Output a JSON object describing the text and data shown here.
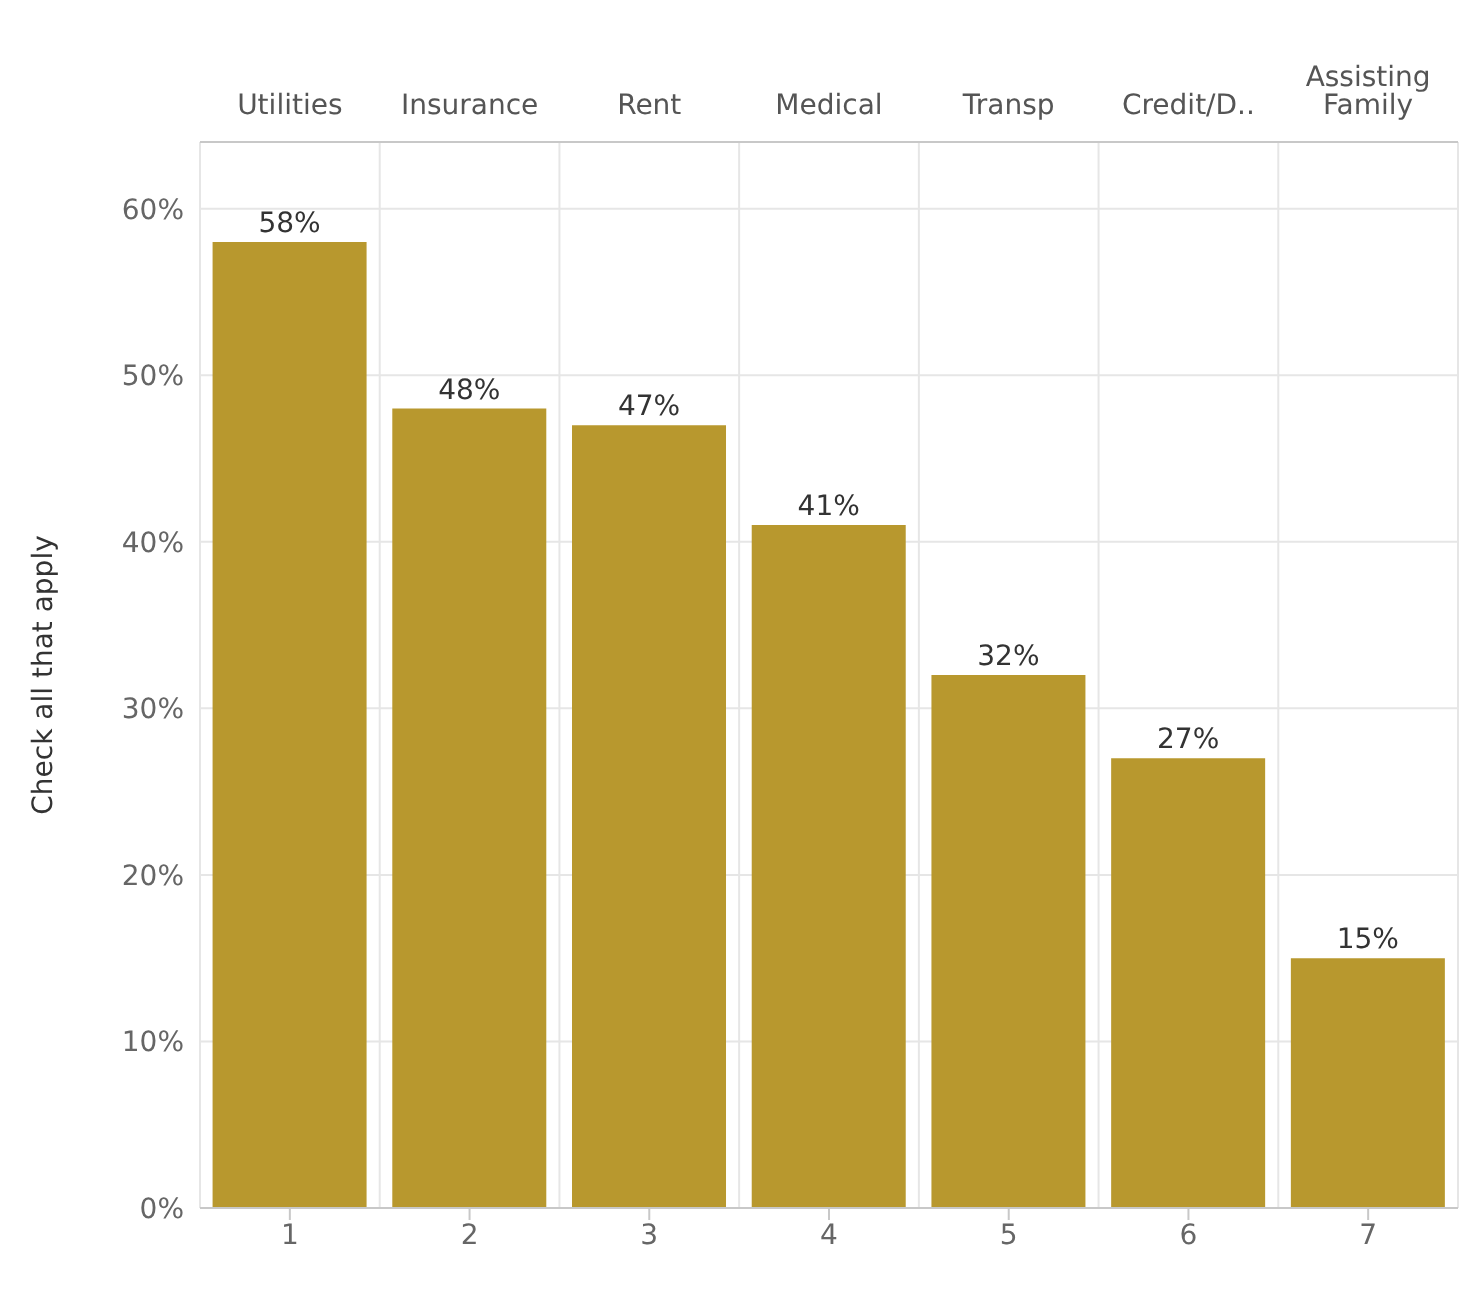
{
  "chart_data": {
    "type": "bar",
    "ylabel": "Check all that apply",
    "categories": [
      "1",
      "2",
      "3",
      "4",
      "5",
      "6",
      "7"
    ],
    "annotations": [
      "Utilities",
      "Insurance",
      "Rent",
      "Medical",
      "Transp",
      "Credit/D..",
      "Assisting Family"
    ],
    "values": [
      58,
      48,
      47,
      41,
      32,
      27,
      15
    ],
    "value_labels": [
      "58%",
      "48%",
      "47%",
      "41%",
      "32%",
      "27%",
      "15%"
    ],
    "color": "#b8982e",
    "ylim": [
      0,
      64
    ],
    "yticks": [
      {
        "value": 0,
        "label": "0%"
      },
      {
        "value": 10,
        "label": "10%"
      },
      {
        "value": 20,
        "label": "20%"
      },
      {
        "value": 30,
        "label": "30%"
      },
      {
        "value": 40,
        "label": "40%"
      },
      {
        "value": 50,
        "label": "50%"
      },
      {
        "value": 60,
        "label": "60%"
      }
    ],
    "grid": true
  }
}
